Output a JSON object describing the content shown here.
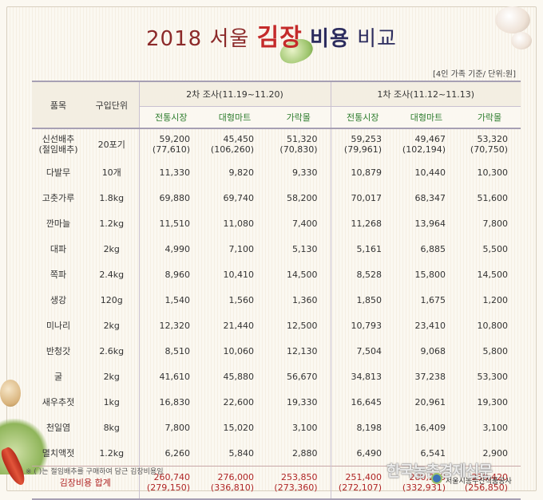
{
  "title": {
    "year": "2018",
    "seoul": "서울",
    "kimjang": "김장",
    "biyong": "비용",
    "bigyo": "비교"
  },
  "unit_note": "[4인 가족 기준/ 단위:원]",
  "headers": {
    "item": "품목",
    "unit": "구입단위",
    "round2": "2차 조사(11.19~11.20)",
    "round1": "1차 조사(11.12~11.13)",
    "markets": [
      "전통시장",
      "대형마트",
      "가락몰"
    ]
  },
  "rows": [
    {
      "item": "신선배추\n(절임배추)",
      "unit": "20포기",
      "r2": [
        "59,200\n(77,610)",
        "45,450\n(106,260)",
        "51,320\n(70,830)"
      ],
      "r1": [
        "59,253\n(79,961)",
        "49,467\n(102,194)",
        "53,320\n(70,750)"
      ]
    },
    {
      "item": "다발무",
      "unit": "10개",
      "r2": [
        "11,330",
        "9,820",
        "9,330"
      ],
      "r1": [
        "10,879",
        "10,440",
        "10,300"
      ]
    },
    {
      "item": "고춧가루",
      "unit": "1.8kg",
      "r2": [
        "69,880",
        "69,740",
        "58,200"
      ],
      "r1": [
        "70,017",
        "68,347",
        "51,600"
      ]
    },
    {
      "item": "깐마늘",
      "unit": "1.2kg",
      "r2": [
        "11,510",
        "11,080",
        "7,400"
      ],
      "r1": [
        "11,268",
        "13,964",
        "7,800"
      ]
    },
    {
      "item": "대파",
      "unit": "2kg",
      "r2": [
        "4,990",
        "7,100",
        "5,130"
      ],
      "r1": [
        "5,161",
        "6,885",
        "5,500"
      ]
    },
    {
      "item": "쪽파",
      "unit": "2.4kg",
      "r2": [
        "8,960",
        "10,410",
        "14,500"
      ],
      "r1": [
        "8,528",
        "15,800",
        "14,500"
      ]
    },
    {
      "item": "생강",
      "unit": "120g",
      "r2": [
        "1,540",
        "1,560",
        "1,360"
      ],
      "r1": [
        "1,850",
        "1,675",
        "1,200"
      ]
    },
    {
      "item": "미나리",
      "unit": "2kg",
      "r2": [
        "12,320",
        "21,440",
        "12,500"
      ],
      "r1": [
        "10,793",
        "23,410",
        "10,800"
      ]
    },
    {
      "item": "반청갓",
      "unit": "2.6kg",
      "r2": [
        "8,510",
        "10,060",
        "12,130"
      ],
      "r1": [
        "7,504",
        "9,068",
        "5,800"
      ]
    },
    {
      "item": "굴",
      "unit": "2kg",
      "r2": [
        "41,610",
        "45,880",
        "56,670"
      ],
      "r1": [
        "34,813",
        "37,238",
        "53,300"
      ]
    },
    {
      "item": "새우추젓",
      "unit": "1kg",
      "r2": [
        "16,830",
        "22,600",
        "19,330"
      ],
      "r1": [
        "16,645",
        "20,961",
        "19,300"
      ]
    },
    {
      "item": "천일염",
      "unit": "8kg",
      "r2": [
        "7,800",
        "15,020",
        "3,100"
      ],
      "r1": [
        "8,198",
        "16,409",
        "3,100"
      ]
    },
    {
      "item": "멸치액젓",
      "unit": "1.2kg",
      "r2": [
        "6,260",
        "5,840",
        "2,880"
      ],
      "r1": [
        "6,490",
        "6,541",
        "2,900"
      ]
    }
  ],
  "total": {
    "label": "김장비용 합계",
    "r2": [
      "260,740\n(279,150)",
      "276,000\n(336,810)",
      "253,850\n(273,360)"
    ],
    "r1": [
      "251,400\n(272,107)",
      "280,203\n(332,931)",
      "239,420\n(256,850)"
    ]
  },
  "footnote": "※ (  )는 절임배추를 구매하여 담근 김장비용임",
  "watermark": "한국농촌경제신문",
  "organization": "서울시농수산식품공사",
  "colors": {
    "accent_red": "#c42a2a",
    "header_green": "#2e7d2e",
    "title_navy": "#2c2c5e",
    "total_red": "#b02525"
  }
}
